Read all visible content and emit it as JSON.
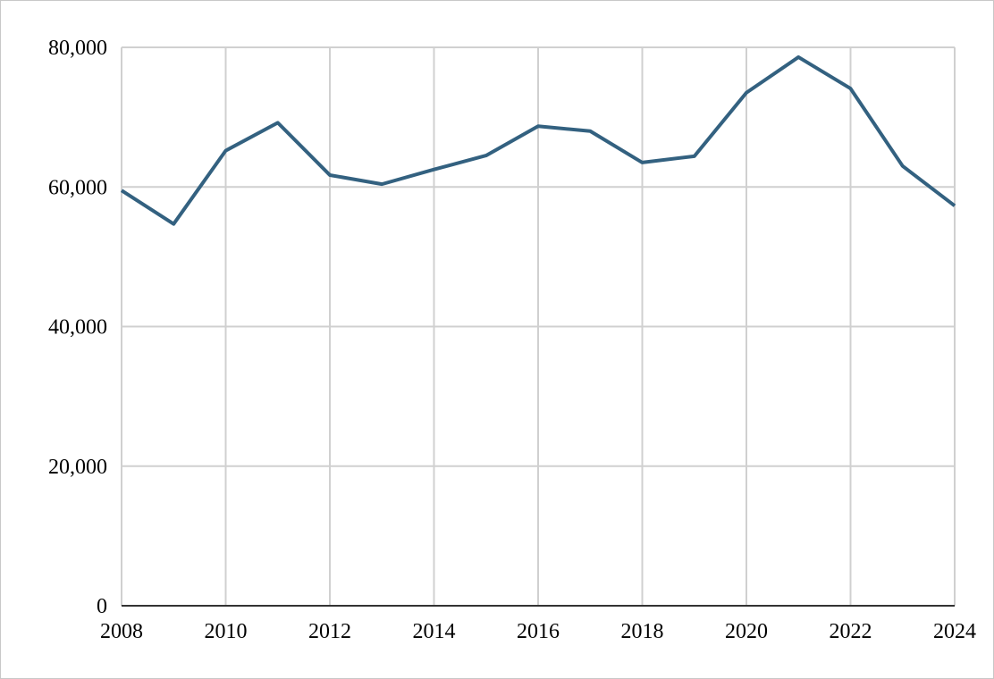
{
  "chart_data": {
    "type": "line",
    "x": [
      2008,
      2009,
      2010,
      2011,
      2012,
      2013,
      2014,
      2015,
      2016,
      2017,
      2018,
      2019,
      2020,
      2021,
      2022,
      2023,
      2024
    ],
    "series": [
      {
        "color": "#336180",
        "values": [
          59500,
          54700,
          65200,
          69200,
          61700,
          60400,
          62500,
          64500,
          68700,
          68000,
          63500,
          64400,
          73500,
          78600,
          74100,
          63000,
          57300
        ]
      }
    ],
    "xlim": [
      2008,
      2024
    ],
    "xticks": [
      2008,
      2010,
      2012,
      2014,
      2016,
      2018,
      2020,
      2022,
      2024
    ],
    "ylim": [
      0,
      80000
    ],
    "yticks": [
      0,
      {
        "value": 20000,
        "label": "20,000"
      },
      {
        "value": 40000,
        "label": "40,000"
      },
      {
        "value": 60000,
        "label": "60,000"
      },
      {
        "value": 80000,
        "label": "80,000"
      }
    ],
    "grid": true
  }
}
